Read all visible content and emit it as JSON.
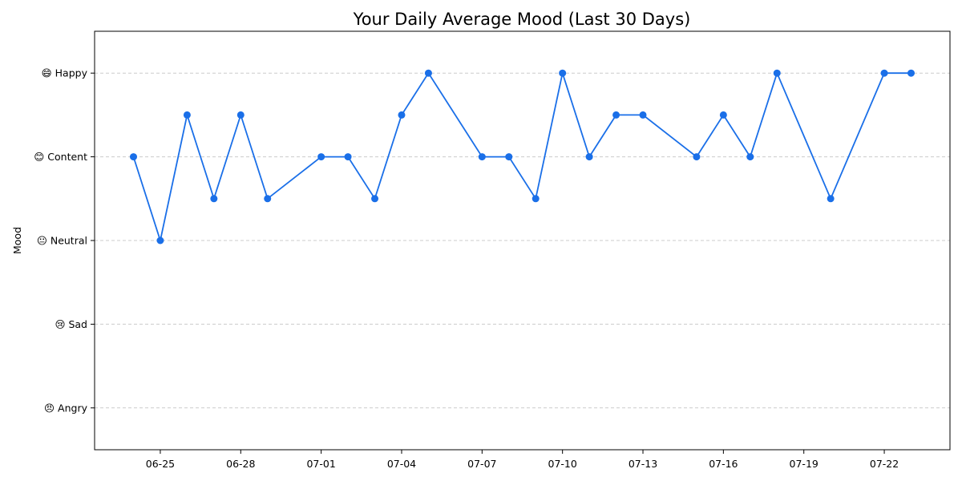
{
  "chart_data": {
    "type": "line",
    "title": "Your Daily Average Mood (Last 30 Days)",
    "xlabel": "",
    "ylabel": "Mood",
    "x_axis": "date",
    "xlim": [
      "06-23",
      "07-24"
    ],
    "ylim": [
      0.5,
      5.5
    ],
    "x_ticks": [
      "06-25",
      "06-28",
      "07-01",
      "07-04",
      "07-07",
      "07-10",
      "07-13",
      "07-16",
      "07-19",
      "07-22"
    ],
    "y_ticks": [
      {
        "value": 1,
        "label": "😠 Angry"
      },
      {
        "value": 2,
        "label": "😢 Sad"
      },
      {
        "value": 3,
        "label": "😐 Neutral"
      },
      {
        "value": 4,
        "label": "😊 Content"
      },
      {
        "value": 5,
        "label": "😄 Happy"
      }
    ],
    "grid": "y-dashed",
    "color": "#1a6fe8",
    "series": [
      {
        "x": [
          "06-24",
          "06-25",
          "06-26",
          "06-27",
          "06-28",
          "06-29",
          "07-01",
          "07-02",
          "07-03",
          "07-04",
          "07-05",
          "07-07",
          "07-08",
          "07-09",
          "07-10",
          "07-11",
          "07-12",
          "07-13",
          "07-15",
          "07-16",
          "07-17",
          "07-18",
          "07-20",
          "07-22",
          "07-23"
        ],
        "values": [
          4,
          3,
          4.5,
          3.5,
          4.5,
          3.5,
          4,
          4,
          3.5,
          4.5,
          5,
          4,
          4,
          3.5,
          5,
          4,
          4.5,
          4.5,
          4,
          4.5,
          4,
          5,
          3.5,
          5,
          5
        ]
      }
    ]
  }
}
